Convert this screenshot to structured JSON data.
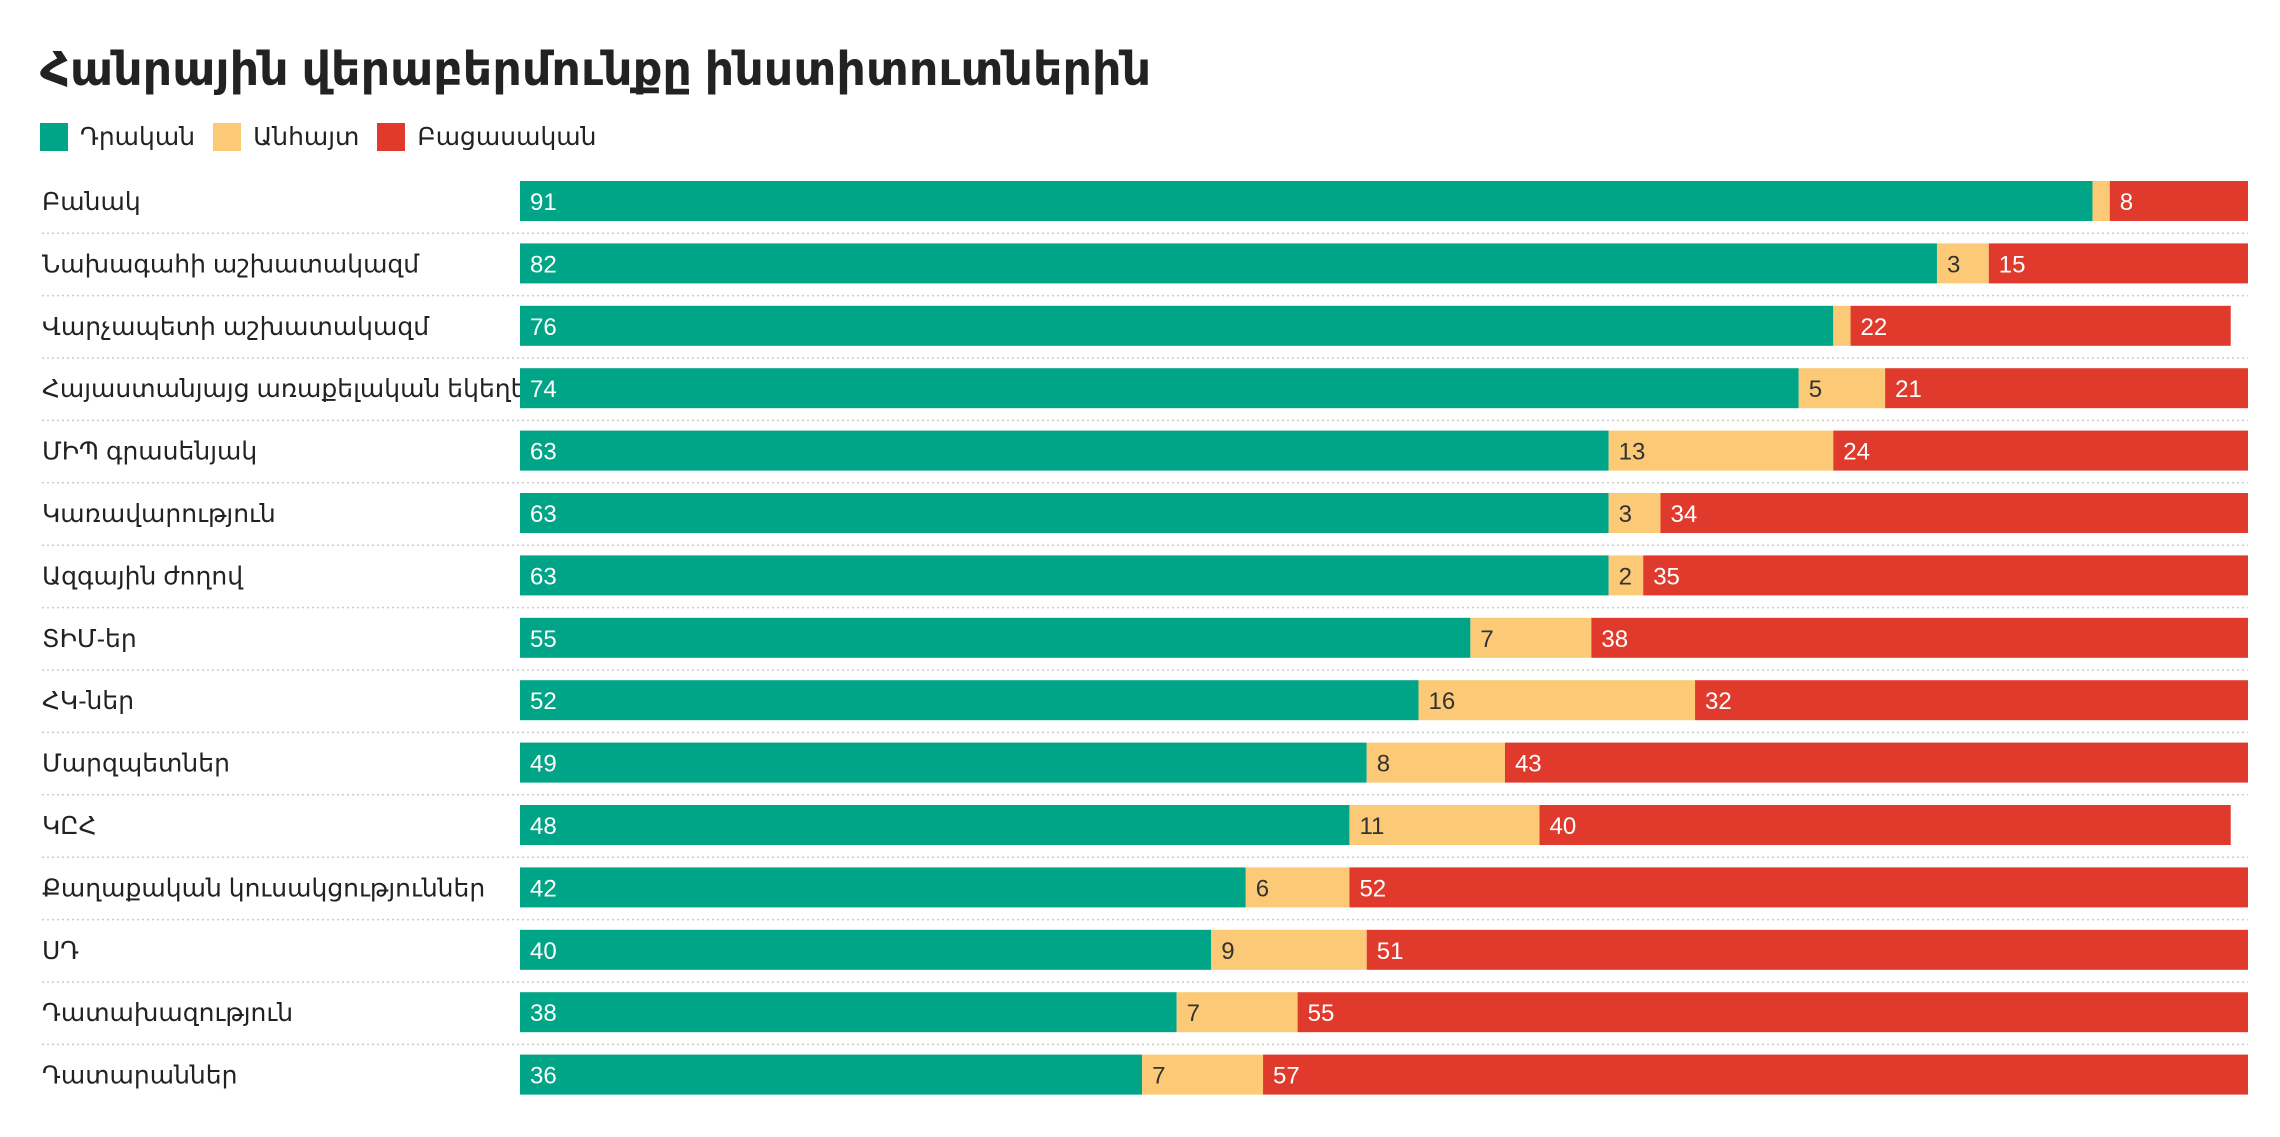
{
  "chart_data": {
    "type": "bar",
    "stacked": true,
    "orientation": "horizontal",
    "title": "Հանրային վերաբերմունքը ինստիտուտներին",
    "legend_position": "top-left",
    "colors": {
      "positive": "#00a587",
      "unknown": "#fcca77",
      "negative": "#e03a2d"
    },
    "series": [
      {
        "key": "positive",
        "name": "Դրական"
      },
      {
        "key": "unknown",
        "name": "Անհայտ"
      },
      {
        "key": "negative",
        "name": "Բացասական"
      }
    ],
    "rows": [
      {
        "label": "Բանակ",
        "positive": 91,
        "unknown": 1,
        "negative": 8,
        "unknown_shown": false
      },
      {
        "label": "Նախագահի աշխատակազմ",
        "positive": 82,
        "unknown": 3,
        "negative": 15,
        "unknown_shown": true
      },
      {
        "label": "Վարչապետի աշխատակազմ",
        "positive": 76,
        "unknown": 1,
        "negative": 22,
        "unknown_shown": false
      },
      {
        "label": "Հայաստանյայց առաքելական եկեղեցի",
        "positive": 74,
        "unknown": 5,
        "negative": 21,
        "unknown_shown": true
      },
      {
        "label": "ՄԻՊ գրասենյակ",
        "positive": 63,
        "unknown": 13,
        "negative": 24,
        "unknown_shown": true
      },
      {
        "label": "Կառավարություն",
        "positive": 63,
        "unknown": 3,
        "negative": 34,
        "unknown_shown": true
      },
      {
        "label": "Ազգային ժողով",
        "positive": 63,
        "unknown": 2,
        "negative": 35,
        "unknown_shown": true
      },
      {
        "label": "ՏԻՄ-եր",
        "positive": 55,
        "unknown": 7,
        "negative": 38,
        "unknown_shown": true
      },
      {
        "label": "ՀԿ-ներ",
        "positive": 52,
        "unknown": 16,
        "negative": 32,
        "unknown_shown": true
      },
      {
        "label": "Մարզպետներ",
        "positive": 49,
        "unknown": 8,
        "negative": 43,
        "unknown_shown": true
      },
      {
        "label": "ԿԸՀ",
        "positive": 48,
        "unknown": 11,
        "negative": 40,
        "unknown_shown": true
      },
      {
        "label": "Քաղաքական կուսակցություններ",
        "positive": 42,
        "unknown": 6,
        "negative": 52,
        "unknown_shown": true
      },
      {
        "label": "ՍԴ",
        "positive": 40,
        "unknown": 9,
        "negative": 51,
        "unknown_shown": true
      },
      {
        "label": "Դատախազություն",
        "positive": 38,
        "unknown": 7,
        "negative": 55,
        "unknown_shown": true
      },
      {
        "label": "Դատարաններ",
        "positive": 36,
        "unknown": 7,
        "negative": 57,
        "unknown_shown": true
      }
    ]
  }
}
